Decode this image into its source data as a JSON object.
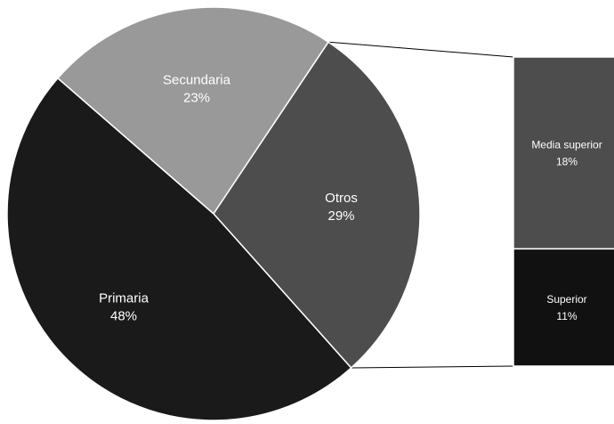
{
  "chart_data": {
    "type": "bar-of-pie",
    "pie": {
      "slices": [
        {
          "label": "Secundaria",
          "value": 23,
          "value_label": "23%",
          "color": "#999999"
        },
        {
          "label": "Otros",
          "value": 29,
          "value_label": "29%",
          "color": "#4d4d4d"
        },
        {
          "label": "Primaria",
          "value": 48,
          "value_label": "48%",
          "color": "#1a1a1a"
        }
      ]
    },
    "bar": {
      "exploded_slice": "Otros",
      "segments": [
        {
          "label": "Media superior",
          "value": 18,
          "value_label": "18%",
          "color": "#4d4d4d"
        },
        {
          "label": "Superior",
          "value": 11,
          "value_label": "11%",
          "color": "#111111"
        }
      ]
    }
  }
}
